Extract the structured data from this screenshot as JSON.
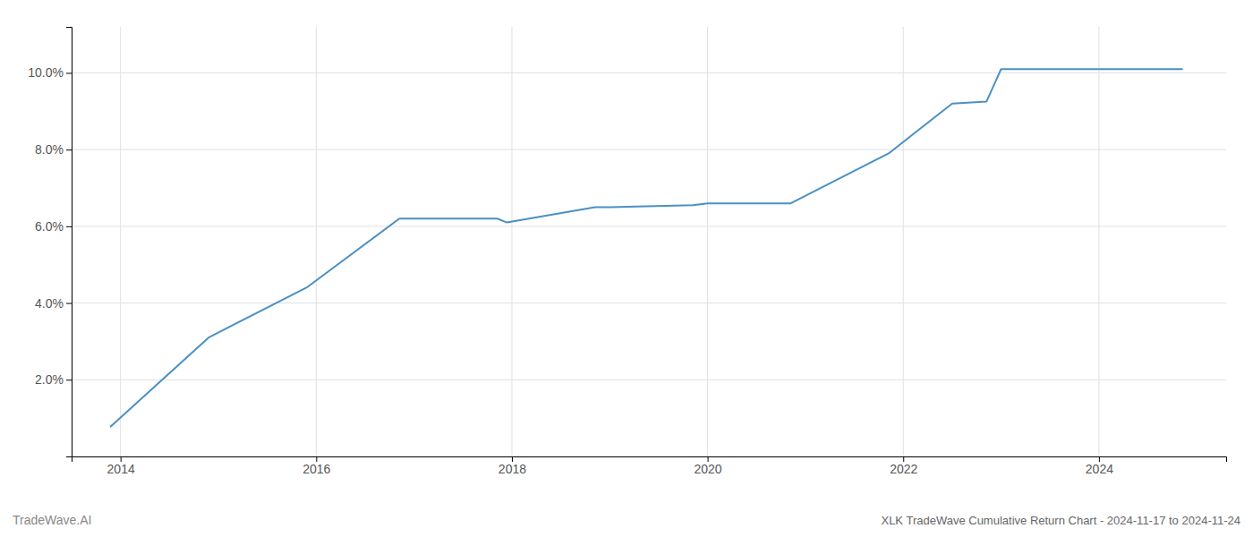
{
  "chart_data": {
    "type": "line",
    "title": "XLK TradeWave Cumulative Return Chart - 2024-11-17 to 2024-11-24",
    "annotations": [
      "TradeWave.AI"
    ],
    "x": [
      2013.9,
      2014.9,
      2015.9,
      2016.85,
      2017.0,
      2017.85,
      2017.95,
      2018.85,
      2019.0,
      2019.85,
      2020.0,
      2020.85,
      2021.85,
      2022.5,
      2022.85,
      2023.0,
      2023.85,
      2024.85
    ],
    "values": [
      0.0078,
      0.031,
      0.044,
      0.062,
      0.062,
      0.062,
      0.061,
      0.065,
      0.065,
      0.0655,
      0.066,
      0.066,
      0.079,
      0.092,
      0.0925,
      0.101,
      0.101,
      0.101
    ],
    "color": "#4a90c4",
    "xlim": [
      2013.5,
      2025.3
    ],
    "ylim": [
      0.0,
      0.112
    ],
    "xticks": [
      2014,
      2016,
      2018,
      2020,
      2022,
      2024
    ],
    "yticks": [
      {
        "value": 0.02,
        "label": "2.0%"
      },
      {
        "value": 0.04,
        "label": "4.0%"
      },
      {
        "value": 0.06,
        "label": "6.0%"
      },
      {
        "value": 0.08,
        "label": "8.0%"
      },
      {
        "value": 0.1,
        "label": "10.0%"
      }
    ],
    "grid": true
  }
}
